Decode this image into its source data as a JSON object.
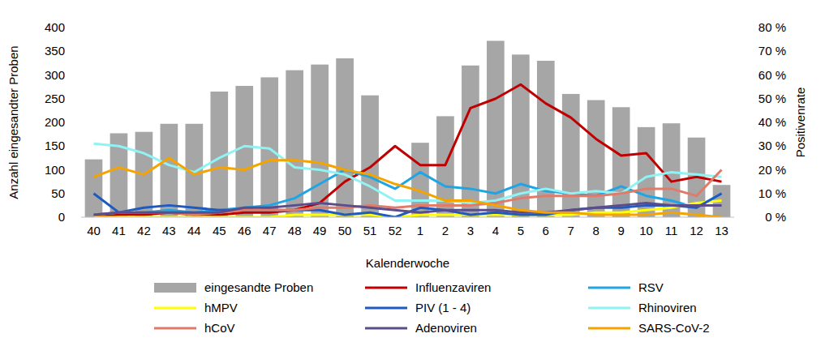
{
  "chart_data": {
    "type": "bar",
    "x_label": "Kalenderwoche",
    "y_label": "Anzahl eingesandter Proben",
    "y2_label": "Positivenrate",
    "categories": [
      "40",
      "41",
      "42",
      "43",
      "44",
      "45",
      "46",
      "47",
      "48",
      "49",
      "50",
      "51",
      "52",
      "1",
      "2",
      "3",
      "4",
      "5",
      "6",
      "7",
      "8",
      "9",
      "10",
      "11",
      "12",
      "13"
    ],
    "ylim": [
      0,
      400
    ],
    "yticks": [
      0,
      50,
      100,
      150,
      200,
      250,
      300,
      350,
      400
    ],
    "y2lim": [
      0,
      80
    ],
    "y2ticks": [
      {
        "value": 0,
        "label": "0 %"
      },
      {
        "value": 10,
        "label": "10 %"
      },
      {
        "value": 20,
        "label": "20 %"
      },
      {
        "value": 30,
        "label": "30 %"
      },
      {
        "value": 40,
        "label": "40 %"
      },
      {
        "value": 50,
        "label": "50 %"
      },
      {
        "value": 60,
        "label": "60 %"
      },
      {
        "value": 70,
        "label": "70 %"
      },
      {
        "value": 80,
        "label": "80 %"
      }
    ],
    "grid": false,
    "legend": "bottom",
    "series": [
      {
        "name": "eingesandte Proben",
        "type": "bar",
        "color": "#a6a6a6",
        "values": [
          122,
          177,
          180,
          197,
          197,
          265,
          277,
          295,
          310,
          322,
          335,
          257,
          null,
          157,
          213,
          320,
          372,
          343,
          330,
          260,
          247,
          232,
          190,
          198,
          168,
          68
        ]
      },
      {
        "name": "Influenzaviren",
        "type": "line",
        "axis": "y2",
        "color": "#c00000",
        "values": [
          0,
          1,
          1,
          2,
          1,
          1,
          2,
          2,
          3,
          6,
          15,
          21,
          30,
          22,
          22,
          46,
          50,
          56,
          48,
          42,
          33,
          26,
          27,
          15,
          17,
          15
        ]
      },
      {
        "name": "RSV",
        "type": "line",
        "axis": "y2",
        "color": "#1fa5e3",
        "values": [
          1,
          2,
          2,
          3,
          2,
          3,
          4,
          5,
          8,
          14,
          20,
          17,
          12,
          19,
          13,
          12,
          10,
          14,
          11,
          10,
          9,
          13,
          9,
          7,
          4,
          10
        ]
      },
      {
        "name": "hMPV",
        "type": "line",
        "axis": "y2",
        "color": "#ffff00",
        "values": [
          0,
          0,
          0,
          0,
          0,
          0,
          0,
          0,
          1,
          1,
          1,
          1,
          0,
          1,
          1,
          1,
          1,
          1,
          1,
          1,
          2,
          2,
          3,
          4,
          6,
          7
        ]
      },
      {
        "name": "PIV (1 - 4)",
        "type": "line",
        "axis": "y2",
        "color": "#1f5bbf",
        "values": [
          10,
          2,
          4,
          5,
          4,
          3,
          3,
          3,
          3,
          3,
          1,
          2,
          0,
          4,
          3,
          1,
          2,
          1,
          1,
          3,
          4,
          4,
          5,
          5,
          4,
          10
        ]
      },
      {
        "name": "Rhinoviren",
        "type": "line",
        "axis": "y2",
        "color": "#8ff3f3",
        "values": [
          31,
          30,
          27,
          22,
          19,
          25,
          30,
          29,
          21,
          20,
          18,
          13,
          7,
          7,
          7,
          6,
          7,
          10,
          12,
          10,
          11,
          10,
          17,
          19,
          18,
          17
        ]
      },
      {
        "name": "hCoV",
        "type": "line",
        "axis": "y2",
        "color": "#e07b6a",
        "values": [
          1,
          2,
          2,
          2,
          1,
          2,
          3,
          3,
          3,
          4,
          4,
          5,
          4,
          5,
          5,
          5,
          6,
          8,
          9,
          9,
          9,
          10,
          12,
          12,
          9,
          20
        ]
      },
      {
        "name": "Adenoviren",
        "type": "line",
        "axis": "y2",
        "color": "#5b4c8c",
        "values": [
          1,
          2,
          2,
          2,
          2,
          2,
          4,
          4,
          5,
          6,
          5,
          4,
          3,
          2,
          3,
          3,
          3,
          2,
          2,
          3,
          4,
          5,
          6,
          5,
          5,
          5
        ]
      },
      {
        "name": "SARS-CoV-2",
        "type": "line",
        "axis": "y2",
        "color": "#f5a300",
        "values": [
          17,
          21,
          18,
          25,
          18,
          21,
          20,
          24,
          24,
          23,
          20,
          18,
          14,
          11,
          7,
          7,
          5,
          3,
          2,
          2,
          1,
          1,
          1,
          2,
          1,
          0
        ]
      }
    ]
  }
}
